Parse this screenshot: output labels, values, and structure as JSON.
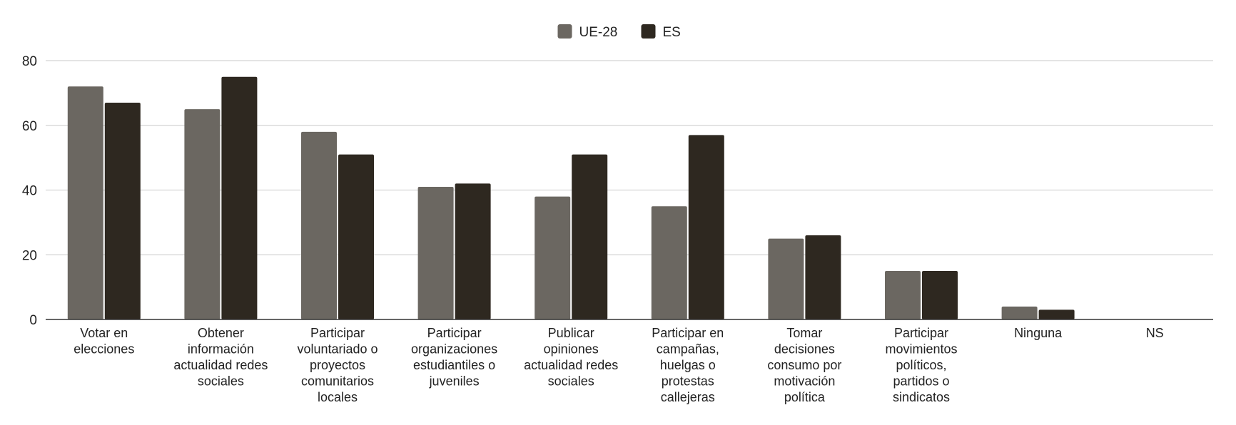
{
  "chart_data": {
    "type": "bar",
    "title": "",
    "xlabel": "",
    "ylabel": "",
    "ylim": [
      0,
      80
    ],
    "yticks": [
      0,
      20,
      40,
      60,
      80
    ],
    "grid": true,
    "legend_position": "top-center",
    "categories": [
      [
        "Votar en",
        "elecciones"
      ],
      [
        "Obtener",
        "información",
        "actualidad redes",
        "sociales"
      ],
      [
        "Participar",
        "voluntariado o",
        "proyectos",
        "comunitarios",
        "locales"
      ],
      [
        "Participar",
        "organizaciones",
        "estudiantiles o",
        "juveniles"
      ],
      [
        "Publicar",
        "opiniones",
        "actualidad redes",
        "sociales"
      ],
      [
        "Participar en",
        "campañas,",
        "huelgas o",
        "protestas",
        "callejeras"
      ],
      [
        "Tomar",
        "decisiones",
        "consumo por",
        "motivación",
        "política"
      ],
      [
        "Participar",
        "movimientos",
        "políticos,",
        "partidos o",
        "sindicatos"
      ],
      [
        "Ninguna"
      ],
      [
        "NS"
      ]
    ],
    "series": [
      {
        "name": "UE-28",
        "color": "#6b6761",
        "values": [
          72,
          65,
          58,
          41,
          38,
          35,
          25,
          15,
          4,
          0
        ]
      },
      {
        "name": "ES",
        "color": "#2e2820",
        "values": [
          67,
          75,
          51,
          42,
          51,
          57,
          26,
          15,
          3,
          0
        ]
      }
    ]
  }
}
